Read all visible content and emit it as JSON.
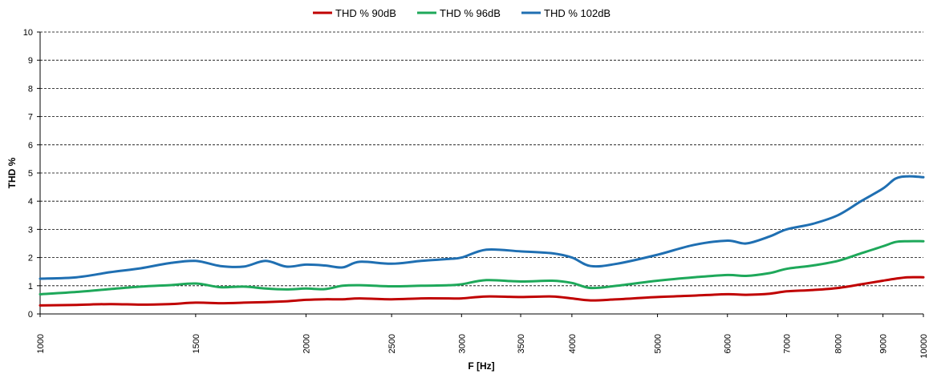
{
  "chart_data": {
    "type": "line",
    "xlabel": "F [Hz]",
    "ylabel": "THD %",
    "xscale": "log",
    "xlim": [
      1000,
      10000
    ],
    "ylim": [
      0,
      10
    ],
    "yticks": [
      0,
      1,
      2,
      3,
      4,
      5,
      6,
      7,
      8,
      9,
      10
    ],
    "xticks": [
      1000,
      1500,
      2000,
      2500,
      3000,
      3500,
      4000,
      5000,
      6000,
      7000,
      8000,
      9000,
      10000
    ],
    "grid": "horizontal dashed",
    "legend_position": "top",
    "series": [
      {
        "name": "THD % 90dB",
        "color": "#c00000",
        "x": [
          1000,
          1100,
          1200,
          1300,
          1400,
          1500,
          1600,
          1700,
          1800,
          1900,
          2000,
          2100,
          2200,
          2300,
          2500,
          2700,
          2900,
          3000,
          3200,
          3500,
          3800,
          4000,
          4200,
          4500,
          5000,
          5500,
          6000,
          6300,
          6700,
          7000,
          7500,
          8000,
          8500,
          9000,
          9300,
          9600,
          10000
        ],
        "values": [
          0.3,
          0.32,
          0.35,
          0.33,
          0.35,
          0.4,
          0.38,
          0.4,
          0.42,
          0.45,
          0.5,
          0.52,
          0.52,
          0.55,
          0.52,
          0.55,
          0.55,
          0.55,
          0.62,
          0.6,
          0.62,
          0.55,
          0.48,
          0.52,
          0.6,
          0.65,
          0.7,
          0.68,
          0.72,
          0.8,
          0.85,
          0.92,
          1.05,
          1.18,
          1.25,
          1.3,
          1.3
        ]
      },
      {
        "name": "THD % 96dB",
        "color": "#1ea85a",
        "x": [
          1000,
          1100,
          1200,
          1300,
          1400,
          1500,
          1600,
          1700,
          1800,
          1900,
          2000,
          2100,
          2200,
          2300,
          2500,
          2700,
          2900,
          3000,
          3200,
          3500,
          3800,
          4000,
          4200,
          4500,
          5000,
          5500,
          6000,
          6300,
          6700,
          7000,
          7500,
          8000,
          8500,
          9000,
          9300,
          9600,
          10000
        ],
        "values": [
          0.7,
          0.78,
          0.88,
          0.97,
          1.02,
          1.08,
          0.95,
          0.97,
          0.9,
          0.87,
          0.9,
          0.88,
          1.0,
          1.02,
          0.98,
          1.0,
          1.02,
          1.05,
          1.2,
          1.15,
          1.18,
          1.1,
          0.92,
          1.0,
          1.18,
          1.3,
          1.38,
          1.35,
          1.45,
          1.6,
          1.72,
          1.88,
          2.15,
          2.4,
          2.55,
          2.58,
          2.58
        ]
      },
      {
        "name": "THD % 102dB",
        "color": "#1f6fb2",
        "x": [
          1000,
          1100,
          1200,
          1300,
          1400,
          1500,
          1600,
          1700,
          1800,
          1900,
          2000,
          2100,
          2200,
          2300,
          2500,
          2700,
          2900,
          3000,
          3200,
          3500,
          3800,
          4000,
          4200,
          4500,
          5000,
          5500,
          6000,
          6300,
          6700,
          7000,
          7500,
          8000,
          8500,
          9000,
          9300,
          9600,
          10000
        ],
        "values": [
          1.25,
          1.3,
          1.48,
          1.62,
          1.8,
          1.88,
          1.7,
          1.68,
          1.88,
          1.68,
          1.75,
          1.72,
          1.65,
          1.85,
          1.78,
          1.88,
          1.95,
          2.0,
          2.28,
          2.22,
          2.15,
          2.0,
          1.7,
          1.78,
          2.1,
          2.45,
          2.6,
          2.5,
          2.75,
          3.0,
          3.2,
          3.5,
          4.0,
          4.45,
          4.8,
          4.88,
          4.85
        ]
      }
    ]
  }
}
